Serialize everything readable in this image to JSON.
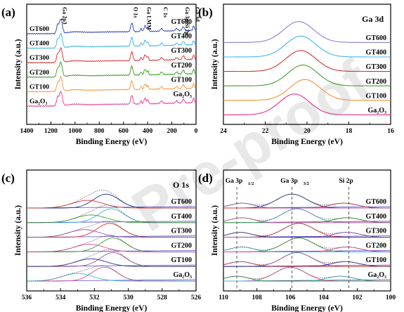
{
  "watermark": "Pre-proof",
  "chart_data": [
    {
      "panel": "(a)",
      "type": "line",
      "xlabel": "Binding Energy (eV)",
      "ylabel": "Intensity (a.u.)",
      "xlim": [
        1400,
        0
      ],
      "xticks": [
        1400,
        1200,
        1000,
        800,
        600,
        400,
        200,
        0
      ],
      "xtick_labels": [
        "1400",
        "1200",
        "1000",
        "800",
        "600",
        "400",
        "200",
        "0"
      ],
      "series": [
        {
          "name": "GT600",
          "color": "#2a3c9e"
        },
        {
          "name": "GT400",
          "color": "#35aee8"
        },
        {
          "name": "GT300",
          "color": "#d42a2a"
        },
        {
          "name": "GT200",
          "color": "#2f9a1c"
        },
        {
          "name": "GT100",
          "color": "#f29338"
        },
        {
          "name": "Ga₂O₃",
          "color": "#e5318e"
        }
      ],
      "peaks": [
        {
          "label": "Ga 2p3",
          "x": 1118
        },
        {
          "label": "O 1s",
          "x": 531
        },
        {
          "label": "Ga LMM",
          "x": 421
        },
        {
          "label": "C 1s",
          "x": 285
        },
        {
          "label": "Ga 3p/Si 2p",
          "x": 105
        },
        {
          "label": "Ga 3d",
          "x": 20
        }
      ]
    },
    {
      "panel": "(b)",
      "type": "line",
      "title": "Ga 3d",
      "xlabel": "Binding Energy (eV)",
      "ylabel": "Intensity (a.u.)",
      "xlim": [
        24,
        16
      ],
      "xticks": [
        24,
        22,
        20,
        18,
        16
      ],
      "xtick_labels": [
        "24",
        "22",
        "20",
        "18",
        "16"
      ],
      "series": [
        {
          "name": "GT600",
          "color": "#8f7fd6",
          "peak": 20.4
        },
        {
          "name": "GT400",
          "color": "#46b4ec",
          "peak": 20.3
        },
        {
          "name": "GT300",
          "color": "#d63131",
          "peak": 20.3
        },
        {
          "name": "GT200",
          "color": "#45a02f",
          "peak": 20.2
        },
        {
          "name": "GT100",
          "color": "#f29338",
          "peak": 20.1
        },
        {
          "name": "Ga₂O₃",
          "color": "#e5318e",
          "peak": 20.6
        }
      ]
    },
    {
      "panel": "(c)",
      "type": "line",
      "title": "O 1s",
      "xlabel": "Binding Energy (eV)",
      "ylabel": "Intensity (a.u.)",
      "xlim": [
        536,
        526
      ],
      "xticks": [
        536,
        534,
        532,
        530,
        528,
        526
      ],
      "xtick_labels": [
        "536",
        "534",
        "532",
        "530",
        "528",
        "526"
      ],
      "series": [
        {
          "name": "GT600",
          "components": [
            531.3,
            532.4
          ]
        },
        {
          "name": "GT400",
          "components": [
            531.0,
            532.2
          ]
        },
        {
          "name": "GT300",
          "components": [
            531.1,
            532.6
          ]
        },
        {
          "name": "GT200",
          "components": [
            530.9,
            532.3
          ]
        },
        {
          "name": "GT100",
          "components": [
            530.9,
            532.2
          ]
        },
        {
          "name": "Ga₂O₃",
          "components": [
            531.4,
            533.0
          ]
        }
      ]
    },
    {
      "panel": "(d)",
      "type": "line",
      "xlabel": "Binding Energy (eV)",
      "ylabel": "Intensity (a.u.)",
      "xlim": [
        110,
        100
      ],
      "xticks": [
        110,
        108,
        106,
        104,
        102,
        100
      ],
      "xtick_labels": [
        "110",
        "108",
        "106",
        "104",
        "102",
        "100"
      ],
      "annotations": [
        {
          "text": "Ga 3p",
          "sub": "1/2",
          "x": 109.2
        },
        {
          "text": "Ga 3p",
          "sub": "3/2",
          "x": 105.9
        },
        {
          "text": "Si 2p",
          "sub": "",
          "x": 102.5
        }
      ],
      "series": [
        {
          "name": "GT600",
          "components": [
            105.9,
            102.8,
            108.9
          ]
        },
        {
          "name": "GT400",
          "components": [
            105.6,
            102.6,
            108.9
          ]
        },
        {
          "name": "GT300",
          "components": [
            105.5,
            102.6,
            109.0
          ]
        },
        {
          "name": "GT200",
          "components": [
            105.5,
            102.6,
            108.9
          ]
        },
        {
          "name": "GT100",
          "components": [
            105.6,
            102.7,
            109.0
          ]
        },
        {
          "name": "Ga₂O₃",
          "components": [
            106.0,
            103.0,
            109.2
          ]
        }
      ]
    }
  ]
}
